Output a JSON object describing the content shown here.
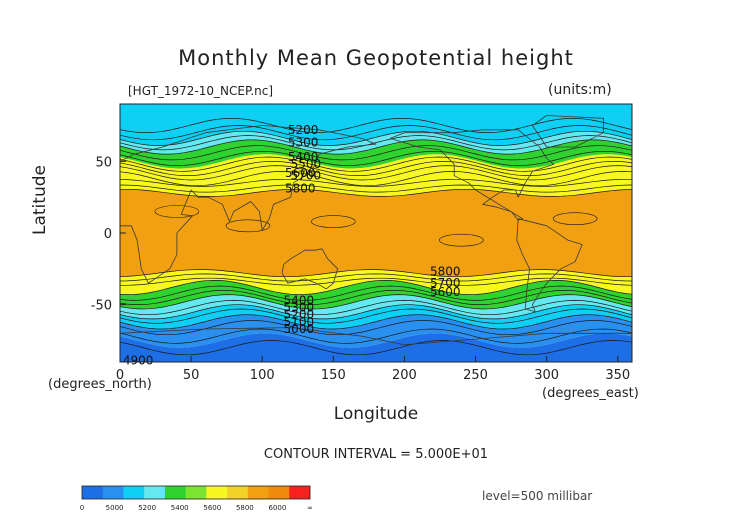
{
  "title": "Monthly Mean Geopotential height",
  "filename": "[HGT_1972-10_NCEP.nc]",
  "units": "(units:m)",
  "footer": {
    "contour_interval": "CONTOUR INTERVAL = 5.000E+01",
    "level": "level=500 millibar"
  },
  "chart_data": {
    "type": "heatmap",
    "title": "Monthly Mean Geopotential height",
    "xlabel": "Longitude",
    "ylabel": "Latitude",
    "x_unit": "(degrees_east)",
    "y_unit": "(degrees_north)",
    "xlim": [
      0,
      360
    ],
    "ylim": [
      -90,
      90
    ],
    "x_ticks": [
      0,
      50,
      100,
      150,
      200,
      250,
      300,
      350
    ],
    "y_ticks": [
      50,
      0,
      -50
    ],
    "contour_interval": 50,
    "bands": [
      {
        "lat": [
          -90,
          -75
        ],
        "value": 4950
      },
      {
        "lat": [
          -75,
          -62
        ],
        "value": 5050
      },
      {
        "lat": [
          -62,
          -55
        ],
        "value": 5250
      },
      {
        "lat": [
          -55,
          -48
        ],
        "value": 5350
      },
      {
        "lat": [
          -48,
          -38
        ],
        "value": 5450
      },
      {
        "lat": [
          -38,
          -28
        ],
        "value": 5700
      },
      {
        "lat": [
          -28,
          28
        ],
        "value": 5850
      },
      {
        "lat": [
          28,
          40
        ],
        "value": 5700
      },
      {
        "lat": [
          40,
          50
        ],
        "value": 5550
      },
      {
        "lat": [
          50,
          60
        ],
        "value": 5450
      },
      {
        "lat": [
          60,
          66
        ],
        "value": 5350
      },
      {
        "lat": [
          66,
          75
        ],
        "value": 5250
      },
      {
        "lat": [
          75,
          90
        ],
        "value": 5100
      }
    ],
    "contour_labels": [
      {
        "text": "5200",
        "lon": 118,
        "lat": 72
      },
      {
        "text": "5300",
        "lon": 118,
        "lat": 63
      },
      {
        "text": "5400",
        "lon": 118,
        "lat": 53
      },
      {
        "text": "5500",
        "lon": 120,
        "lat": 48
      },
      {
        "text": "5600",
        "lon": 116,
        "lat": 42
      },
      {
        "text": "5700",
        "lon": 120,
        "lat": 40
      },
      {
        "text": "5800",
        "lon": 116,
        "lat": 31
      },
      {
        "text": "5800",
        "lon": 218,
        "lat": -27
      },
      {
        "text": "5700",
        "lon": 218,
        "lat": -35
      },
      {
        "text": "5600",
        "lon": 218,
        "lat": -41
      },
      {
        "text": "5400",
        "lon": 115,
        "lat": -47
      },
      {
        "text": "5300",
        "lon": 115,
        "lat": -52
      },
      {
        "text": "5200",
        "lon": 115,
        "lat": -57
      },
      {
        "text": "5100",
        "lon": 115,
        "lat": -62
      },
      {
        "text": "5000",
        "lon": 115,
        "lat": -67
      },
      {
        "text": "4900",
        "lon": 2,
        "lat": -89
      }
    ],
    "colorbar": {
      "labels": [
        "0",
        "5000",
        "5200",
        "5400",
        "5600",
        "5800",
        "6000",
        "∞"
      ],
      "colors": [
        "#1e6ee6",
        "#2a90f0",
        "#0fd0f4",
        "#66e8f0",
        "#2fd22f",
        "#7ce430",
        "#f8f820",
        "#f2d228",
        "#f0a010",
        "#f08a0a",
        "#f82020"
      ]
    },
    "band_colors": {
      "4950": "#1e6ee6",
      "5050": "#2a90f0",
      "5100": "#0fd0f4",
      "5250": "#0fd0f4",
      "5350": "#66e8f0",
      "5450": "#2fd22f",
      "5550": "#f8f820",
      "5700": "#f8f820",
      "5850": "#f0a010"
    }
  }
}
